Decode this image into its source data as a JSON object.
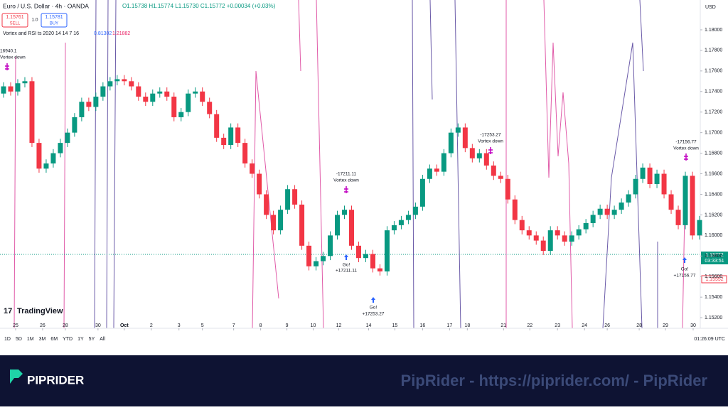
{
  "chart_data": {
    "type": "candlestick",
    "title": "Euro / U.S. Dollar · 4h · OANDA",
    "ohlc_line": "O1.15738 H1.15774 L1.15730 C1.15772 +0.00034 (+0.03%)",
    "sell_price": "1.15761",
    "sell_label": "SELL",
    "spread": "1.0",
    "buy_price": "1.15781",
    "buy_label": "BUY",
    "indicator": "Vortex and RSI ts 2020 14 14 7 16",
    "indicator_values": [
      "0.81302",
      "1.21882"
    ],
    "currency": "USD",
    "current_price": "1.15772",
    "countdown": "03:33:51",
    "low_tag": "1.15552",
    "annotations": [
      "16940.1",
      "Vortex down",
      "-17211.11",
      "Vortex down",
      "Go!",
      "+17211.11",
      "Go!",
      "+17253.27",
      "-17253.27",
      "Vortex down",
      "-17156.77",
      "Vortex down",
      "Go!",
      "+17156.77"
    ],
    "up_color": "#089981",
    "down_color": "#f23645",
    "open": [
      1.1738,
      1.1745,
      1.174,
      1.1748,
      1.175,
      1.169,
      1.1665,
      1.167,
      1.168,
      1.169,
      1.17,
      1.1715,
      1.173,
      1.1725,
      1.1735,
      1.1745,
      1.175,
      1.1752,
      1.175,
      1.1745,
      1.1735,
      1.173,
      1.1738,
      1.174,
      1.1735,
      1.1715,
      1.172,
      1.1738,
      1.174,
      1.173,
      1.1718,
      1.1695,
      1.1688,
      1.1705,
      1.169,
      1.167,
      1.166,
      1.164,
      1.162,
      1.1605,
      1.1625,
      1.1645,
      1.163,
      1.159,
      1.157,
      1.1575,
      1.158,
      1.16,
      1.162,
      1.1625,
      1.159,
      1.1578,
      1.1582,
      1.1568,
      1.1565,
      1.1605,
      1.161,
      1.1615,
      1.162,
      1.1628,
      1.1655,
      1.1665,
      1.1662,
      1.168,
      1.17,
      1.1705,
      1.1685,
      1.1675,
      1.168,
      1.1668,
      1.1658,
      1.1655,
      1.1635,
      1.1615,
      1.1605,
      1.16,
      1.1595,
      1.1585,
      1.1605,
      1.16,
      1.1594,
      1.16,
      1.1606,
      1.1612,
      1.162,
      1.1626,
      1.162,
      1.1625,
      1.1632,
      1.164,
      1.1655,
      1.1666,
      1.165,
      1.166,
      1.164,
      1.1625,
      1.161,
      1.1658,
      1.16
    ],
    "high": [
      1.1749,
      1.1749,
      1.1752,
      1.1754,
      1.1754,
      1.1694,
      1.1674,
      1.1684,
      1.1694,
      1.1704,
      1.1719,
      1.1734,
      1.1734,
      1.1739,
      1.1749,
      1.1754,
      1.1756,
      1.1756,
      1.1754,
      1.1749,
      1.1739,
      1.1742,
      1.1744,
      1.1744,
      1.1739,
      1.1724,
      1.1742,
      1.1744,
      1.1744,
      1.1734,
      1.1722,
      1.1699,
      1.1709,
      1.1709,
      1.1694,
      1.1674,
      1.1664,
      1.1644,
      1.1624,
      1.1629,
      1.1649,
      1.1649,
      1.1634,
      1.1594,
      1.1579,
      1.1584,
      1.1604,
      1.1624,
      1.1629,
      1.1629,
      1.1594,
      1.1586,
      1.1586,
      1.1572,
      1.1609,
      1.1614,
      1.1619,
      1.1624,
      1.1632,
      1.1659,
      1.1669,
      1.1669,
      1.1684,
      1.1704,
      1.1709,
      1.1709,
      1.1689,
      1.1684,
      1.1684,
      1.1672,
      1.1662,
      1.1659,
      1.1639,
      1.1619,
      1.1609,
      1.1604,
      1.1599,
      1.1609,
      1.1609,
      1.1604,
      1.1604,
      1.161,
      1.1616,
      1.1624,
      1.163,
      1.163,
      1.1629,
      1.1636,
      1.1644,
      1.1659,
      1.167,
      1.167,
      1.1664,
      1.1664,
      1.1644,
      1.1629,
      1.1662,
      1.1662,
      1.1619
    ],
    "low": [
      1.1734,
      1.1736,
      1.1736,
      1.1744,
      1.1686,
      1.1661,
      1.1661,
      1.1666,
      1.1676,
      1.1686,
      1.1696,
      1.1711,
      1.1721,
      1.1721,
      1.1731,
      1.1741,
      1.1746,
      1.1746,
      1.1741,
      1.1731,
      1.1726,
      1.1726,
      1.1734,
      1.1731,
      1.1711,
      1.1711,
      1.1716,
      1.1734,
      1.1726,
      1.1714,
      1.1691,
      1.1684,
      1.1684,
      1.1686,
      1.1666,
      1.1656,
      1.1636,
      1.1616,
      1.1601,
      1.1601,
      1.1621,
      1.1626,
      1.1586,
      1.1566,
      1.1566,
      1.1571,
      1.1576,
      1.1596,
      1.1616,
      1.1586,
      1.1574,
      1.1574,
      1.1564,
      1.1561,
      1.1561,
      1.1601,
      1.1606,
      1.1611,
      1.1616,
      1.1624,
      1.1651,
      1.1658,
      1.1658,
      1.1676,
      1.1696,
      1.1681,
      1.1671,
      1.1671,
      1.1664,
      1.1654,
      1.1651,
      1.1631,
      1.1611,
      1.1601,
      1.1596,
      1.1591,
      1.1581,
      1.1581,
      1.1596,
      1.159,
      1.159,
      1.1596,
      1.1602,
      1.1608,
      1.1616,
      1.1616,
      1.1616,
      1.1621,
      1.1628,
      1.1636,
      1.1651,
      1.1646,
      1.1646,
      1.1636,
      1.1621,
      1.1606,
      1.1606,
      1.1596,
      1.1596
    ],
    "close": [
      1.1745,
      1.174,
      1.1748,
      1.175,
      1.169,
      1.1665,
      1.167,
      1.168,
      1.169,
      1.17,
      1.1715,
      1.173,
      1.1725,
      1.1735,
      1.1745,
      1.175,
      1.1752,
      1.175,
      1.1745,
      1.1735,
      1.173,
      1.1738,
      1.174,
      1.1735,
      1.1715,
      1.172,
      1.1738,
      1.174,
      1.173,
      1.1718,
      1.1695,
      1.1688,
      1.1705,
      1.169,
      1.167,
      1.166,
      1.164,
      1.162,
      1.1605,
      1.1625,
      1.1645,
      1.163,
      1.159,
      1.157,
      1.1575,
      1.158,
      1.16,
      1.162,
      1.1625,
      1.159,
      1.1578,
      1.1582,
      1.1568,
      1.1565,
      1.1605,
      1.161,
      1.1615,
      1.162,
      1.1628,
      1.1655,
      1.1665,
      1.1662,
      1.168,
      1.17,
      1.1705,
      1.1685,
      1.1675,
      1.168,
      1.1668,
      1.1658,
      1.1655,
      1.1635,
      1.1615,
      1.1605,
      1.16,
      1.1595,
      1.1585,
      1.1605,
      1.16,
      1.1594,
      1.16,
      1.1606,
      1.1612,
      1.162,
      1.1626,
      1.162,
      1.1625,
      1.1632,
      1.164,
      1.1655,
      1.1666,
      1.165,
      1.166,
      1.164,
      1.1625,
      1.161,
      1.1658,
      1.16,
      1.1615
    ],
    "xlim": [
      -0.5,
      98.1
    ],
    "xticks": [
      {
        "value": 1.7,
        "label": "25"
      },
      {
        "value": 5.5,
        "label": "26"
      },
      {
        "value": 8.7,
        "label": "28"
      },
      {
        "value": 13.3,
        "label": "30"
      },
      {
        "value": 17,
        "label": "Oct"
      },
      {
        "value": 20.8,
        "label": "2"
      },
      {
        "value": 24.7,
        "label": "3"
      },
      {
        "value": 28,
        "label": "5"
      },
      {
        "value": 32.4,
        "label": "7"
      },
      {
        "value": 36.2,
        "label": "8"
      },
      {
        "value": 39.9,
        "label": "9"
      },
      {
        "value": 43.6,
        "label": "10"
      },
      {
        "value": 47.2,
        "label": "12"
      },
      {
        "value": 51.4,
        "label": "14"
      },
      {
        "value": 55.1,
        "label": "15"
      },
      {
        "value": 59,
        "label": "16"
      },
      {
        "value": 62.8,
        "label": "17"
      },
      {
        "value": 65.3,
        "label": "18"
      },
      {
        "value": 70.4,
        "label": "21"
      },
      {
        "value": 74.1,
        "label": "22"
      },
      {
        "value": 78,
        "label": "23"
      },
      {
        "value": 81.8,
        "label": "24"
      },
      {
        "value": 85,
        "label": "26"
      },
      {
        "value": 89.5,
        "label": "28"
      },
      {
        "value": 93.2,
        "label": "29"
      },
      {
        "value": 97.1,
        "label": "30"
      }
    ],
    "ylim": [
      1.1518,
      1.1829
    ],
    "yticks": [
      {
        "value": 1.18,
        "label": "1.18000"
      },
      {
        "value": 1.178,
        "label": "1.17800"
      },
      {
        "value": 1.176,
        "label": "1.17600"
      },
      {
        "value": 1.174,
        "label": "1.17400"
      },
      {
        "value": 1.172,
        "label": "1.17200"
      },
      {
        "value": 1.17,
        "label": "1.17000"
      },
      {
        "value": 1.168,
        "label": "1.16800"
      },
      {
        "value": 1.166,
        "label": "1.16600"
      },
      {
        "value": 1.164,
        "label": "1.16400"
      },
      {
        "value": 1.162,
        "label": "1.16200"
      },
      {
        "value": 1.16,
        "label": "1.16000"
      },
      {
        "value": 1.158,
        "label": "1.15800"
      },
      {
        "value": 1.156,
        "label": "1.15600"
      },
      {
        "value": 1.154,
        "label": "1.15400"
      },
      {
        "value": 1.152,
        "label": "1.15200"
      }
    ],
    "ranges": [
      "1D",
      "5D",
      "1M",
      "3M",
      "6M",
      "YTD",
      "1Y",
      "5Y",
      "All"
    ],
    "clock": "01:26:09 UTC",
    "logo": "TradingView"
  },
  "banner": {
    "brand": "PIPRIDER",
    "watermark": "PipRider - https://piprider.com/ - PipRider"
  }
}
